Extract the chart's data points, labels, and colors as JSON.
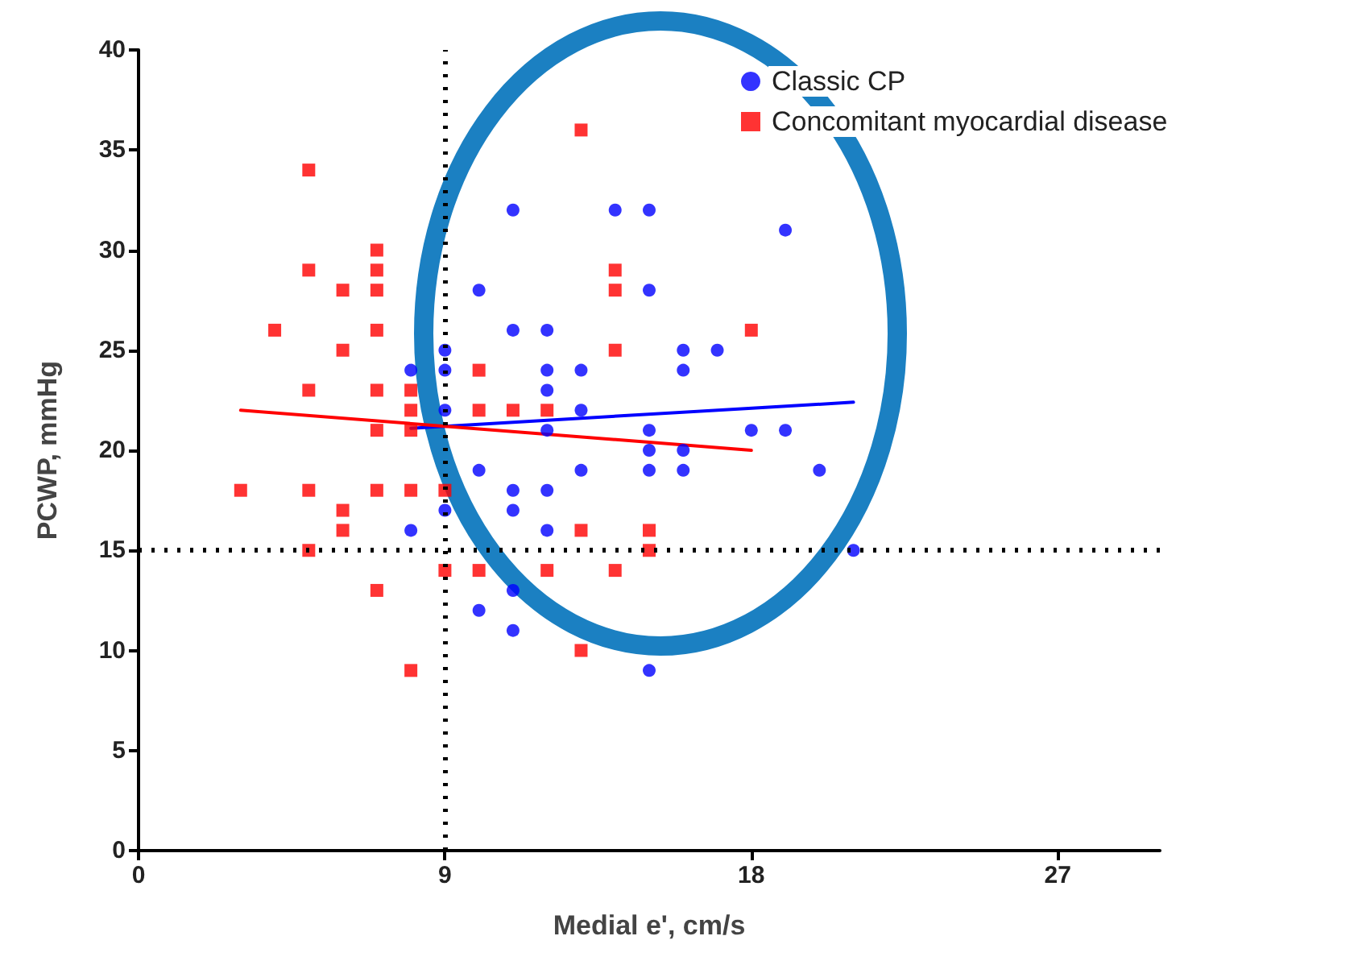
{
  "chart_data": {
    "type": "scatter",
    "xlabel": "Medial e', cm/s",
    "ylabel": "PCWP, mmHg",
    "xlim": [
      0,
      30
    ],
    "xticks": [
      0,
      9,
      18,
      27
    ],
    "ylim": [
      0,
      40
    ],
    "yticks": [
      0,
      5,
      10,
      15,
      20,
      25,
      30,
      35,
      40
    ],
    "grid": false,
    "legend": "top right",
    "series": [
      {
        "name": "Classic CP",
        "color": "#0000ff",
        "marker": "circle",
        "x": [
          8,
          8,
          9,
          9,
          9,
          9,
          10,
          10,
          10,
          11,
          11,
          11,
          11,
          11,
          11,
          12,
          12,
          12,
          12,
          12,
          12,
          13,
          13,
          13,
          14,
          15,
          15,
          15,
          15,
          15,
          15,
          16,
          16,
          16,
          16,
          17,
          18,
          19,
          19,
          20,
          21
        ],
        "values": [
          24,
          16,
          25,
          24,
          22,
          17,
          28,
          19,
          12,
          32,
          26,
          18,
          17,
          13,
          11,
          26,
          24,
          23,
          21,
          18,
          16,
          24,
          22,
          19,
          32,
          32,
          28,
          21,
          20,
          19,
          9,
          25,
          24,
          20,
          19,
          25,
          21,
          31,
          21,
          19,
          15
        ]
      },
      {
        "name": "Concomitant myocardial disease",
        "color": "#ff0000",
        "marker": "square",
        "x": [
          3,
          4,
          5,
          5,
          5,
          5,
          5,
          6,
          6,
          6,
          6,
          7,
          7,
          7,
          7,
          7,
          7,
          7,
          7,
          8,
          8,
          8,
          8,
          8,
          9,
          9,
          10,
          10,
          10,
          11,
          12,
          12,
          13,
          13,
          13,
          14,
          14,
          14,
          14,
          15,
          15,
          18
        ],
        "values": [
          18,
          26,
          34,
          29,
          23,
          18,
          15,
          28,
          25,
          17,
          16,
          30,
          29,
          28,
          26,
          23,
          21,
          18,
          13,
          23,
          22,
          21,
          18,
          9,
          18,
          14,
          24,
          22,
          14,
          22,
          22,
          14,
          36,
          16,
          10,
          29,
          28,
          25,
          14,
          16,
          15,
          26
        ]
      },
      {
        "type": "line",
        "color": "#0000ff",
        "marker": "none",
        "x": [
          8,
          21
        ],
        "values": [
          21.1,
          22.4
        ]
      },
      {
        "type": "line",
        "color": "#ff0000",
        "marker": "none",
        "x": [
          3,
          18
        ],
        "values": [
          22,
          20
        ]
      }
    ],
    "ref_lines": [
      {
        "axis": "x",
        "value": 9,
        "color": "#000000",
        "line_style": "dotted"
      },
      {
        "axis": "y",
        "value": 15,
        "color": "#000000",
        "line_style": "dotted"
      }
    ]
  }
}
